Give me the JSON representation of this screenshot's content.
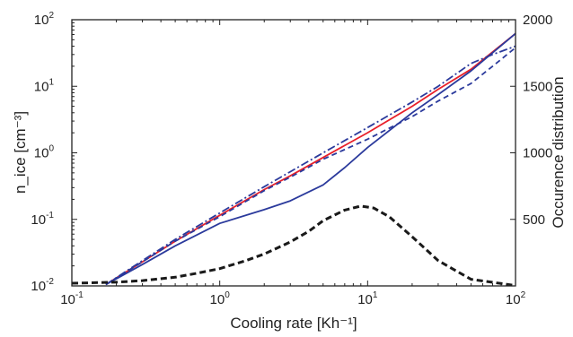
{
  "chart_data": {
    "type": "line",
    "xlabel": "Cooling rate [Kh⁻¹]",
    "ylabel": "n_ice [cm⁻³]",
    "ylabel_right": "Occurence distribution",
    "xscale": "log",
    "yscale": "log",
    "xlim": [
      0.1,
      100
    ],
    "ylim": [
      0.01,
      100
    ],
    "ylim_right": [
      0,
      2000
    ],
    "x_ticks": [
      {
        "base": "10",
        "exp": "-1"
      },
      {
        "base": "10",
        "exp": "0"
      },
      {
        "base": "10",
        "exp": "1"
      },
      {
        "base": "10",
        "exp": "2"
      }
    ],
    "y_ticks": [
      {
        "base": "10",
        "exp": "-2"
      },
      {
        "base": "10",
        "exp": "-1"
      },
      {
        "base": "10",
        "exp": "0"
      },
      {
        "base": "10",
        "exp": "1"
      },
      {
        "base": "10",
        "exp": "2"
      }
    ],
    "y_ticks_right": [
      "500",
      "1000",
      "1500",
      "2000"
    ],
    "grid": false,
    "legend": "none",
    "series": [
      {
        "style": "solid",
        "color": "#e8202a",
        "axis": "left",
        "x": [
          0.17,
          0.3,
          0.5,
          1,
          2,
          3,
          5,
          10,
          20,
          30,
          50,
          100
        ],
        "y": [
          0.0105,
          0.023,
          0.047,
          0.115,
          0.28,
          0.45,
          0.85,
          2.0,
          5.0,
          9.0,
          18,
          62
        ]
      },
      {
        "style": "solid",
        "color": "#2b3a9c",
        "axis": "left",
        "x": [
          0.17,
          0.3,
          0.5,
          1,
          2,
          3,
          5,
          7,
          10,
          20,
          30,
          50,
          100
        ],
        "y": [
          0.0105,
          0.021,
          0.04,
          0.087,
          0.14,
          0.19,
          0.33,
          0.6,
          1.2,
          4.0,
          7.5,
          17,
          62
        ]
      },
      {
        "style": "dashed",
        "color": "#2b3a9c",
        "axis": "left",
        "x": [
          0.17,
          0.3,
          0.5,
          1,
          2,
          3,
          5,
          10,
          20,
          30,
          50,
          70,
          100
        ],
        "y": [
          0.0105,
          0.023,
          0.047,
          0.11,
          0.27,
          0.43,
          0.8,
          1.6,
          3.5,
          6.0,
          11,
          20,
          38
        ]
      },
      {
        "style": "dashdot",
        "color": "#2b3a9c",
        "axis": "left",
        "x": [
          0.17,
          0.3,
          0.5,
          1,
          2,
          3,
          5,
          10,
          20,
          30,
          50,
          70,
          100
        ],
        "y": [
          0.0105,
          0.024,
          0.05,
          0.125,
          0.31,
          0.52,
          1.0,
          2.4,
          5.8,
          10,
          22,
          30,
          40
        ]
      },
      {
        "style": "dashed-thick",
        "color": "#1a1a1a",
        "axis": "right",
        "x": [
          0.1,
          0.2,
          0.3,
          0.5,
          0.7,
          1,
          1.5,
          2,
          3,
          4,
          5,
          7,
          9,
          11,
          14,
          20,
          30,
          50,
          100
        ],
        "y": [
          20,
          28,
          40,
          65,
          95,
          130,
          190,
          240,
          330,
          410,
          490,
          570,
          600,
          585,
          520,
          370,
          190,
          50,
          3
        ]
      }
    ]
  }
}
